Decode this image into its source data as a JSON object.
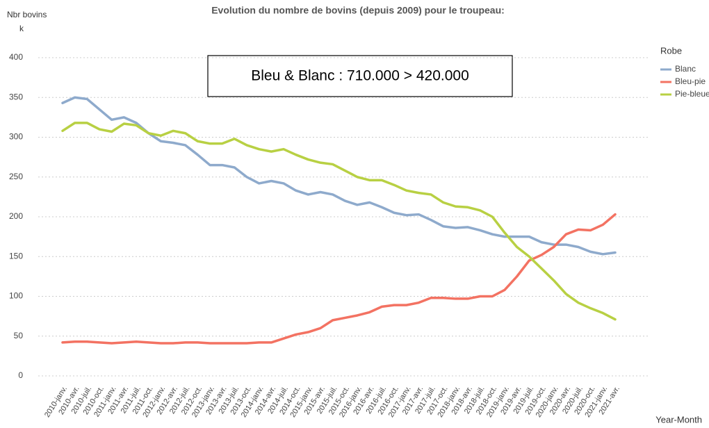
{
  "chart_data": {
    "type": "line",
    "title": "Evolution du nombre de bovins (depuis 2009) pour le troupeau:",
    "y_label": "Nbr bovins",
    "y_unit": "k",
    "x_label": "Year-Month",
    "annotation": "Bleu & Blanc : 710.000 > 420.000",
    "legend_title": "Robe",
    "legend": "right",
    "grid": true,
    "categories": [
      "2010-janv.",
      "2010-avr.",
      "2010-juil.",
      "2010-oct.",
      "2011-janv.",
      "2011-avr.",
      "2011-juil.",
      "2011-oct.",
      "2012-janv.",
      "2012-avr.",
      "2012-juil.",
      "2012-oct.",
      "2013-janv.",
      "2013-avr.",
      "2013-juil.",
      "2013-oct.",
      "2014-janv.",
      "2014-avr.",
      "2014-juil.",
      "2014-oct.",
      "2015-janv.",
      "2015-avr.",
      "2015-juil.",
      "2015-oct.",
      "2016-janv.",
      "2016-avr.",
      "2016-juil.",
      "2016-oct.",
      "2017-janv.",
      "2017-avr.",
      "2017-juil.",
      "2017-oct.",
      "2018-janv.",
      "2018-avr.",
      "2018-juil.",
      "2018-oct.",
      "2019-janv.",
      "2019-avr.",
      "2019-juil.",
      "2019-oct.",
      "2020-janv.",
      "2020-avr.",
      "2020-juil.",
      "2020-oct.",
      "2021-janv.",
      "2021-avr."
    ],
    "series": [
      {
        "name": "Blanc",
        "color": "#8eaacc",
        "values": [
          343,
          350,
          348,
          335,
          322,
          325,
          318,
          305,
          295,
          293,
          290,
          278,
          265,
          265,
          262,
          250,
          242,
          245,
          242,
          233,
          228,
          231,
          228,
          220,
          215,
          218,
          212,
          205,
          202,
          203,
          196,
          188,
          186,
          187,
          183,
          178,
          175,
          175,
          175,
          168,
          165,
          165,
          162,
          156,
          153,
          155
        ]
      },
      {
        "name": "Bleu-pie",
        "color": "#f37262",
        "values": [
          42,
          43,
          43,
          42,
          41,
          42,
          43,
          42,
          41,
          41,
          42,
          42,
          41,
          41,
          41,
          41,
          42,
          42,
          47,
          52,
          55,
          60,
          70,
          73,
          76,
          80,
          87,
          89,
          89,
          92,
          98,
          98,
          97,
          97,
          100,
          100,
          108,
          125,
          145,
          152,
          162,
          178,
          184,
          183,
          190,
          203
        ]
      },
      {
        "name": "Pie-bleue",
        "color": "#b8d043",
        "values": [
          308,
          318,
          318,
          310,
          307,
          317,
          315,
          305,
          302,
          308,
          305,
          295,
          292,
          292,
          298,
          290,
          285,
          282,
          285,
          278,
          272,
          268,
          266,
          258,
          250,
          246,
          246,
          240,
          233,
          230,
          228,
          218,
          213,
          212,
          208,
          200,
          180,
          162,
          150,
          135,
          120,
          103,
          92,
          85,
          79,
          71
        ]
      }
    ],
    "ylim": [
      0,
      400
    ],
    "yticks": [
      0,
      50,
      100,
      150,
      200,
      250,
      300,
      350,
      400
    ]
  }
}
